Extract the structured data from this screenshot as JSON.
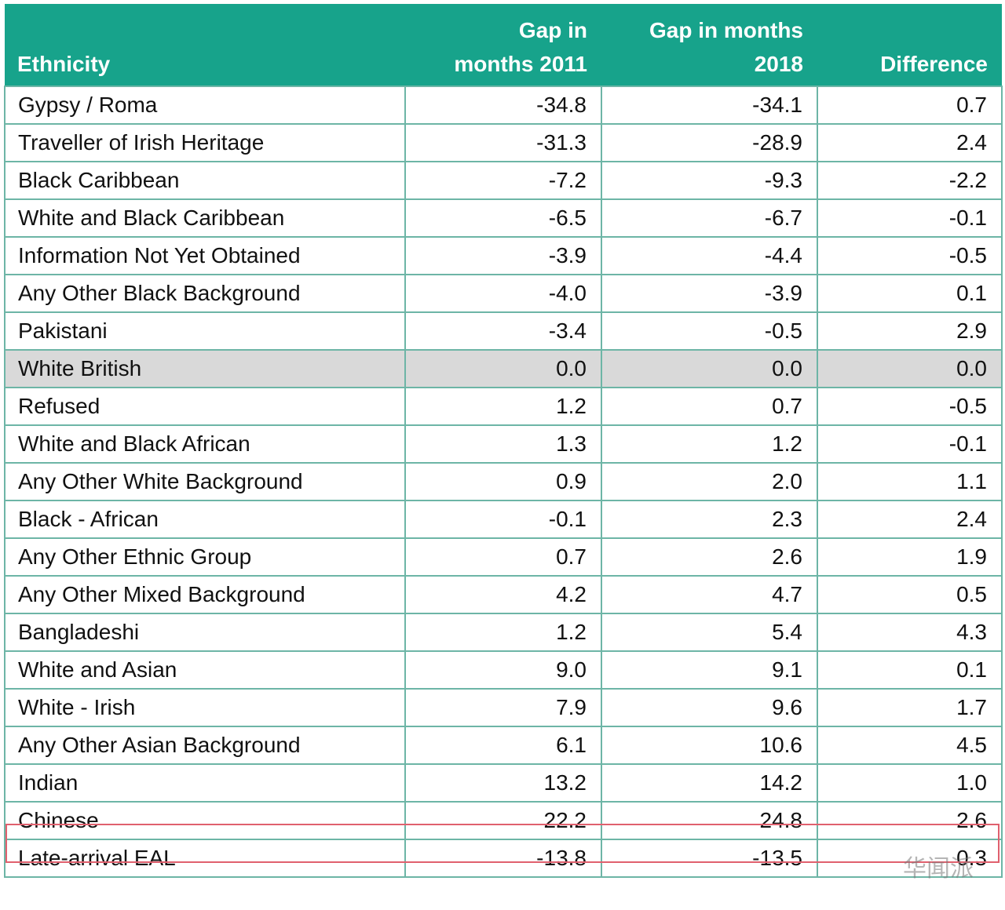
{
  "table": {
    "header": [
      [
        "Ethnicity"
      ],
      [
        "Gap in",
        "months 2011"
      ],
      [
        "Gap in months",
        "2018"
      ],
      [
        "Difference"
      ]
    ],
    "rows": [
      [
        "Gypsy / Roma",
        "-34.8",
        "-34.1",
        "0.7"
      ],
      [
        "Traveller of Irish Heritage",
        "-31.3",
        "-28.9",
        "2.4"
      ],
      [
        "Black Caribbean",
        "-7.2",
        "-9.3",
        "-2.2"
      ],
      [
        "White and Black Caribbean",
        "-6.5",
        "-6.7",
        "-0.1"
      ],
      [
        "Information Not Yet Obtained",
        "-3.9",
        "-4.4",
        "-0.5"
      ],
      [
        "Any Other Black Background",
        "-4.0",
        "-3.9",
        "0.1"
      ],
      [
        "Pakistani",
        "-3.4",
        "-0.5",
        "2.9"
      ],
      [
        "White British",
        "0.0",
        "0.0",
        "0.0"
      ],
      [
        "Refused",
        "1.2",
        "0.7",
        "-0.5"
      ],
      [
        "White and Black African",
        "1.3",
        "1.2",
        "-0.1"
      ],
      [
        "Any Other White Background",
        "0.9",
        "2.0",
        "1.1"
      ],
      [
        "Black - African",
        "-0.1",
        "2.3",
        "2.4"
      ],
      [
        "Any Other Ethnic Group",
        "0.7",
        "2.6",
        "1.9"
      ],
      [
        "Any Other Mixed Background",
        "4.2",
        "4.7",
        "0.5"
      ],
      [
        "Bangladeshi",
        "1.2",
        "5.4",
        "4.3"
      ],
      [
        "White and Asian",
        "9.0",
        "9.1",
        "0.1"
      ],
      [
        "White - Irish",
        "7.9",
        "9.6",
        "1.7"
      ],
      [
        "Any Other Asian Background",
        "6.1",
        "10.6",
        "4.5"
      ],
      [
        "Indian",
        "13.2",
        "14.2",
        "1.0"
      ],
      [
        "Chinese",
        "22.2",
        "24.8",
        "2.6"
      ],
      [
        "Late-arrival EAL",
        "-13.8",
        "-13.5",
        "0.3"
      ]
    ]
  },
  "watermark": "华闻派"
}
